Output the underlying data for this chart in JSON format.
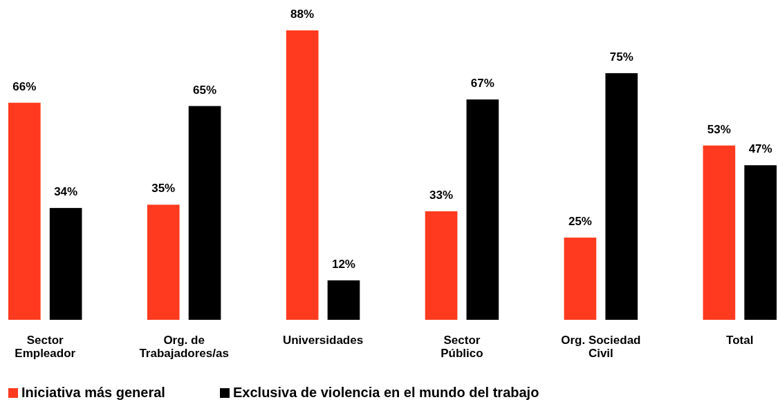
{
  "chart_data": {
    "type": "bar",
    "categories": [
      "Sector Empleador",
      "Org. de Trabajadores/as",
      "Universidades",
      "Sector Público",
      "Org. Sociedad Civil",
      "Total"
    ],
    "series": [
      {
        "name": "Iniciativa más general",
        "color": "#ff3a1f",
        "values": [
          66,
          35,
          88,
          33,
          25,
          53
        ],
        "value_labels": [
          "66%",
          "35%",
          "88%",
          "33%",
          "25%",
          "53%"
        ]
      },
      {
        "name": "Exclusiva de violencia en el mundo del trabajo",
        "color": "#000000",
        "values": [
          34,
          65,
          12,
          67,
          75,
          47
        ],
        "value_labels": [
          "34%",
          "65%",
          "12%",
          "67%",
          "75%",
          "47%"
        ]
      }
    ],
    "relative": false,
    "legend": "bottom left"
  }
}
